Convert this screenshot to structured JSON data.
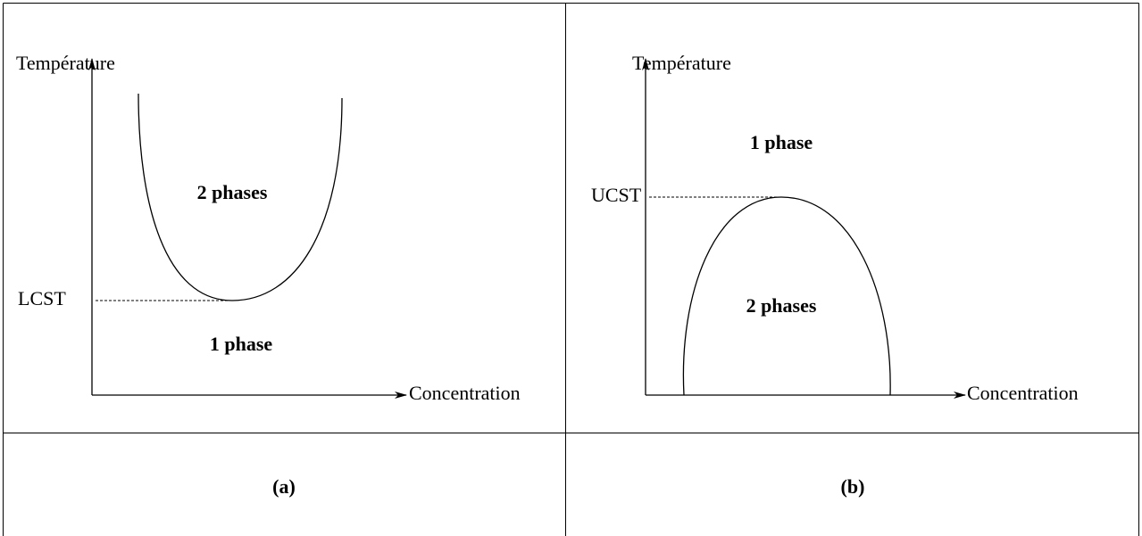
{
  "panels": [
    {
      "y_axis_label": "Température",
      "x_axis_label": "Concentration",
      "critical_label": "LCST",
      "upper_region": "2 phases",
      "lower_region": "1 phase",
      "caption": "(a)"
    },
    {
      "y_axis_label": "Température",
      "x_axis_label": "Concentration",
      "critical_label": "UCST",
      "upper_region": "1 phase",
      "lower_region": "2 phases",
      "caption": "(b)"
    }
  ]
}
